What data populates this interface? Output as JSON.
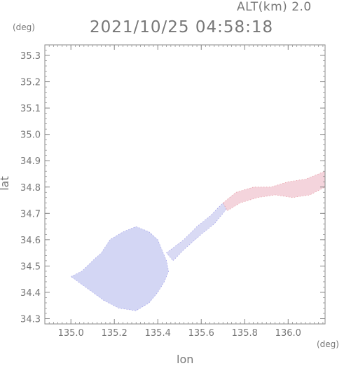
{
  "header": {
    "alt_label": "ALT(km)  2.0",
    "timestamp": "2021/10/25 04:58:18"
  },
  "axes": {
    "xlabel": "lon",
    "ylabel": "lat",
    "x_unit": "(deg)",
    "y_unit": "(deg)"
  },
  "chart_data": {
    "type": "heatmap",
    "xlabel": "lon",
    "ylabel": "lat",
    "xlim": [
      134.88,
      136.17
    ],
    "ylim": [
      34.28,
      35.34
    ],
    "x_ticks": [
      "135.0",
      "135.2",
      "135.4",
      "135.6",
      "135.8",
      "136.0"
    ],
    "y_ticks": [
      "35.3",
      "35.2",
      "35.1",
      "35.0",
      "34.9",
      "34.8",
      "34.7",
      "34.6",
      "34.5",
      "34.4",
      "34.3"
    ],
    "colors": {
      "low": "#cfd3f5",
      "high": "#f5cfd8",
      "edge_blue": "#5a55d8",
      "edge_red": "#d8505a",
      "frame": "#888888"
    },
    "regions": [
      {
        "name": "low-value area west",
        "fill": "#d3d6f4",
        "polygon": [
          [
            135.0,
            34.46
          ],
          [
            135.05,
            34.48
          ],
          [
            135.1,
            34.52
          ],
          [
            135.14,
            34.55
          ],
          [
            135.18,
            34.6
          ],
          [
            135.24,
            34.63
          ],
          [
            135.3,
            34.65
          ],
          [
            135.36,
            34.63
          ],
          [
            135.4,
            34.6
          ],
          [
            135.42,
            34.56
          ],
          [
            135.44,
            34.52
          ],
          [
            135.45,
            34.48
          ],
          [
            135.43,
            34.44
          ],
          [
            135.4,
            34.4
          ],
          [
            135.36,
            34.36
          ],
          [
            135.3,
            34.33
          ],
          [
            135.22,
            34.34
          ],
          [
            135.15,
            34.37
          ],
          [
            135.1,
            34.4
          ],
          [
            135.05,
            34.43
          ]
        ]
      },
      {
        "name": "low-value band",
        "fill": "#d9daf4",
        "polygon": [
          [
            135.44,
            34.55
          ],
          [
            135.52,
            34.6
          ],
          [
            135.58,
            34.65
          ],
          [
            135.64,
            34.69
          ],
          [
            135.7,
            34.74
          ],
          [
            135.72,
            34.72
          ],
          [
            135.66,
            34.66
          ],
          [
            135.6,
            34.62
          ],
          [
            135.53,
            34.57
          ],
          [
            135.47,
            34.52
          ]
        ]
      },
      {
        "name": "high-value area east",
        "fill": "#f4d4dc",
        "polygon": [
          [
            135.7,
            34.74
          ],
          [
            135.76,
            34.78
          ],
          [
            135.84,
            34.8
          ],
          [
            135.92,
            34.8
          ],
          [
            136.0,
            34.82
          ],
          [
            136.08,
            34.83
          ],
          [
            136.17,
            34.86
          ],
          [
            136.17,
            34.8
          ],
          [
            136.1,
            34.77
          ],
          [
            136.02,
            34.76
          ],
          [
            135.94,
            34.77
          ],
          [
            135.86,
            34.76
          ],
          [
            135.78,
            34.74
          ],
          [
            135.72,
            34.71
          ]
        ]
      }
    ]
  }
}
